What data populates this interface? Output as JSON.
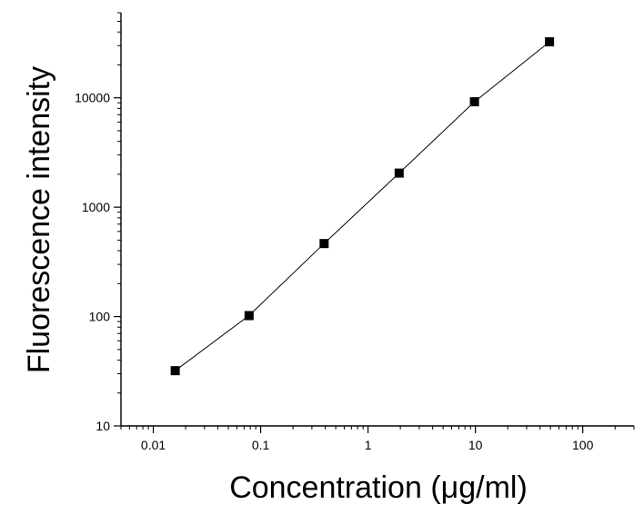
{
  "chart_data": {
    "type": "scatter",
    "x_scale": "log",
    "y_scale": "log",
    "xlim": [
      0.005,
      300
    ],
    "ylim": [
      10,
      60000
    ],
    "xlabel": "Concentration (μg/ml)",
    "ylabel": "Fluorescence intensity",
    "x_ticks": [
      0.01,
      0.1,
      1,
      10,
      100
    ],
    "x_tick_labels": [
      "0.01",
      "0.1",
      "1",
      "10",
      "100"
    ],
    "y_ticks": [
      10,
      100,
      1000,
      10000
    ],
    "y_tick_labels": [
      "10",
      "100",
      "1000",
      "10000"
    ],
    "grid": false,
    "marker": "square",
    "line_color": "#000000",
    "marker_color": "#000000",
    "series": [
      {
        "x": [
          0.016,
          0.078,
          0.39,
          1.95,
          9.8,
          49
        ],
        "y": [
          32,
          102,
          465,
          2050,
          9200,
          32500
        ]
      }
    ]
  }
}
